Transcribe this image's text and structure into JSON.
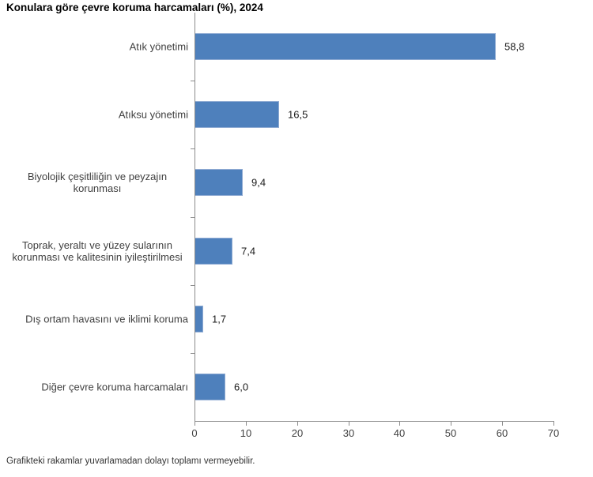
{
  "page": {
    "title": "Konulara göre çevre koruma harcamaları (%), 2024",
    "footnote": "Grafikteki rakamlar yuvarlamadan dolayı toplamı vermeyebilir."
  },
  "colors": {
    "bar_fill": "#4e80bc",
    "bar_border": "#8fabd3",
    "axis": "#8c8c8c",
    "label_text": "#3f3f3f",
    "title_text": "#000000"
  },
  "chart_data": {
    "type": "bar",
    "orientation": "horizontal",
    "title": "Konulara göre çevre koruma harcamaları (%), 2024",
    "xlabel": "",
    "ylabel": "",
    "xlim": [
      0,
      70
    ],
    "x_ticks": [
      0,
      10,
      20,
      30,
      40,
      50,
      60,
      70
    ],
    "grid": false,
    "legend": false,
    "categories": [
      "Atık yönetimi",
      "Atıksu yönetimi",
      "Biyolojik çeşitliliğin ve peyzajın korunması",
      "Toprak, yeraltı ve yüzey sularının korunması ve kalitesinin iyileştirilmesi",
      "Dış ortam havasını ve iklimi koruma",
      "Diğer çevre koruma harcamaları"
    ],
    "values": [
      58.8,
      16.5,
      9.4,
      7.4,
      1.7,
      6.0
    ],
    "value_labels": [
      "58,8",
      "16,5",
      "9,4",
      "7,4",
      "1,7",
      "6,0"
    ],
    "footnote": "Grafikteki rakamlar yuvarlamadan dolayı toplamı vermeyebilir."
  }
}
